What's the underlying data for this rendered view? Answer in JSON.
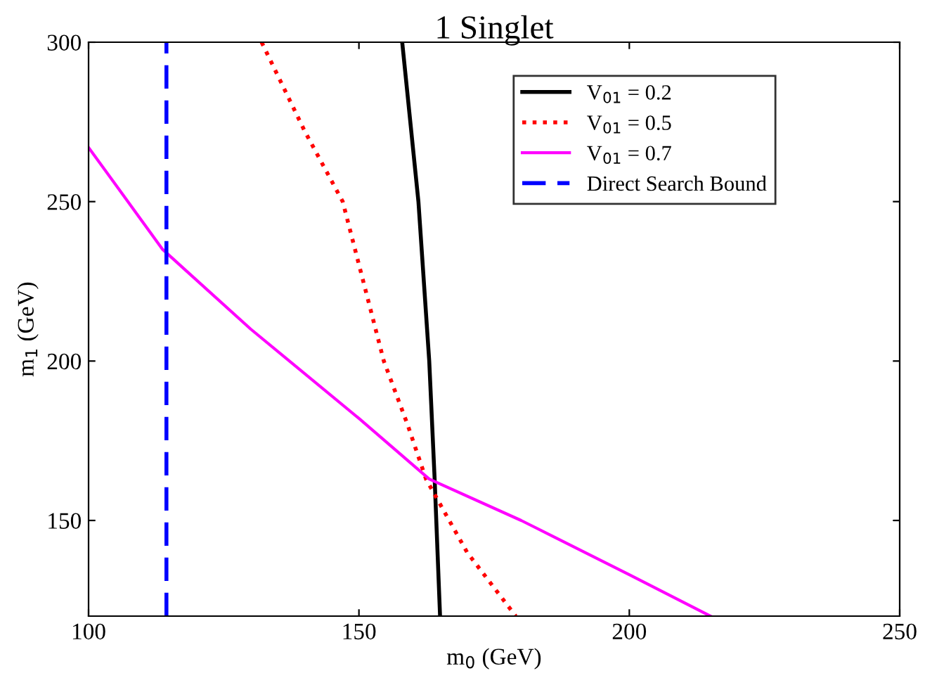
{
  "chart_data": {
    "type": "line",
    "title": "1 Singlet",
    "xlabel": "m$_{0}$ (GeV)",
    "ylabel": "m$_{1}$ (GeV)",
    "xlim": [
      100,
      250
    ],
    "ylim": [
      120,
      300
    ],
    "xticks": [
      100,
      150,
      200,
      250
    ],
    "yticks": [
      150,
      200,
      250,
      300
    ],
    "grid": false,
    "legend": "top right",
    "series": [
      {
        "name": "V$_{01}$ = 0.2",
        "color": "#000000",
        "line_style": "solid",
        "x": [
          158,
          161,
          163,
          164,
          165
        ],
        "values": [
          300,
          250,
          200,
          163,
          120
        ]
      },
      {
        "name": "V$_{01}$ = 0.5",
        "color": "#ff0000",
        "line_style": "dotted",
        "x": [
          132,
          140,
          147,
          154.6,
          159,
          162.4,
          170,
          179
        ],
        "values": [
          300,
          272,
          250,
          200,
          180,
          163,
          140,
          120
        ]
      },
      {
        "name": "V$_{01}$ = 0.7",
        "color": "#ff00ff",
        "line_style": "solid",
        "x": [
          100,
          113.7,
          130,
          150,
          163,
          180,
          200,
          215
        ],
        "values": [
          267,
          235,
          210,
          182,
          163,
          150,
          133,
          120
        ]
      },
      {
        "name": "Direct Search Bound",
        "color": "#0000ff",
        "line_style": "dashed",
        "x": [
          114.4,
          114.4
        ],
        "values": [
          120,
          300
        ]
      }
    ]
  }
}
